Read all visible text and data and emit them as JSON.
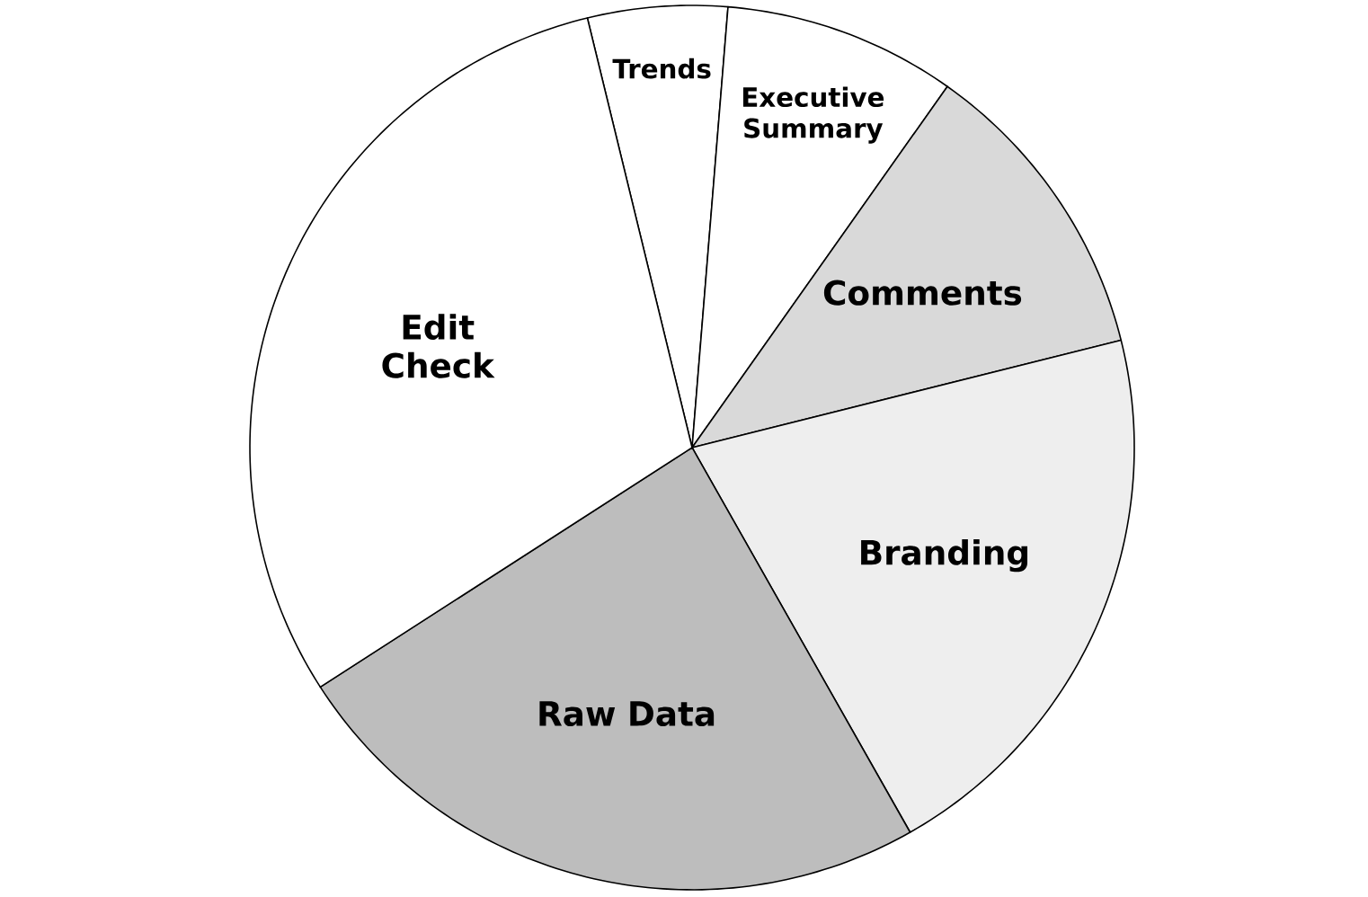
{
  "chart_data": {
    "type": "pie",
    "categories": [
      "Trends",
      "Executive Summary",
      "Comments",
      "Branding",
      "Raw Data",
      "Edit Check"
    ],
    "values": [
      5.1,
      8.5,
      11.3,
      20.7,
      24.1,
      30.3
    ],
    "colors": [
      "#ffffff",
      "#ffffff",
      "#d9d9d9",
      "#eeeeee",
      "#bdbdbd",
      "#ffffff"
    ]
  }
}
